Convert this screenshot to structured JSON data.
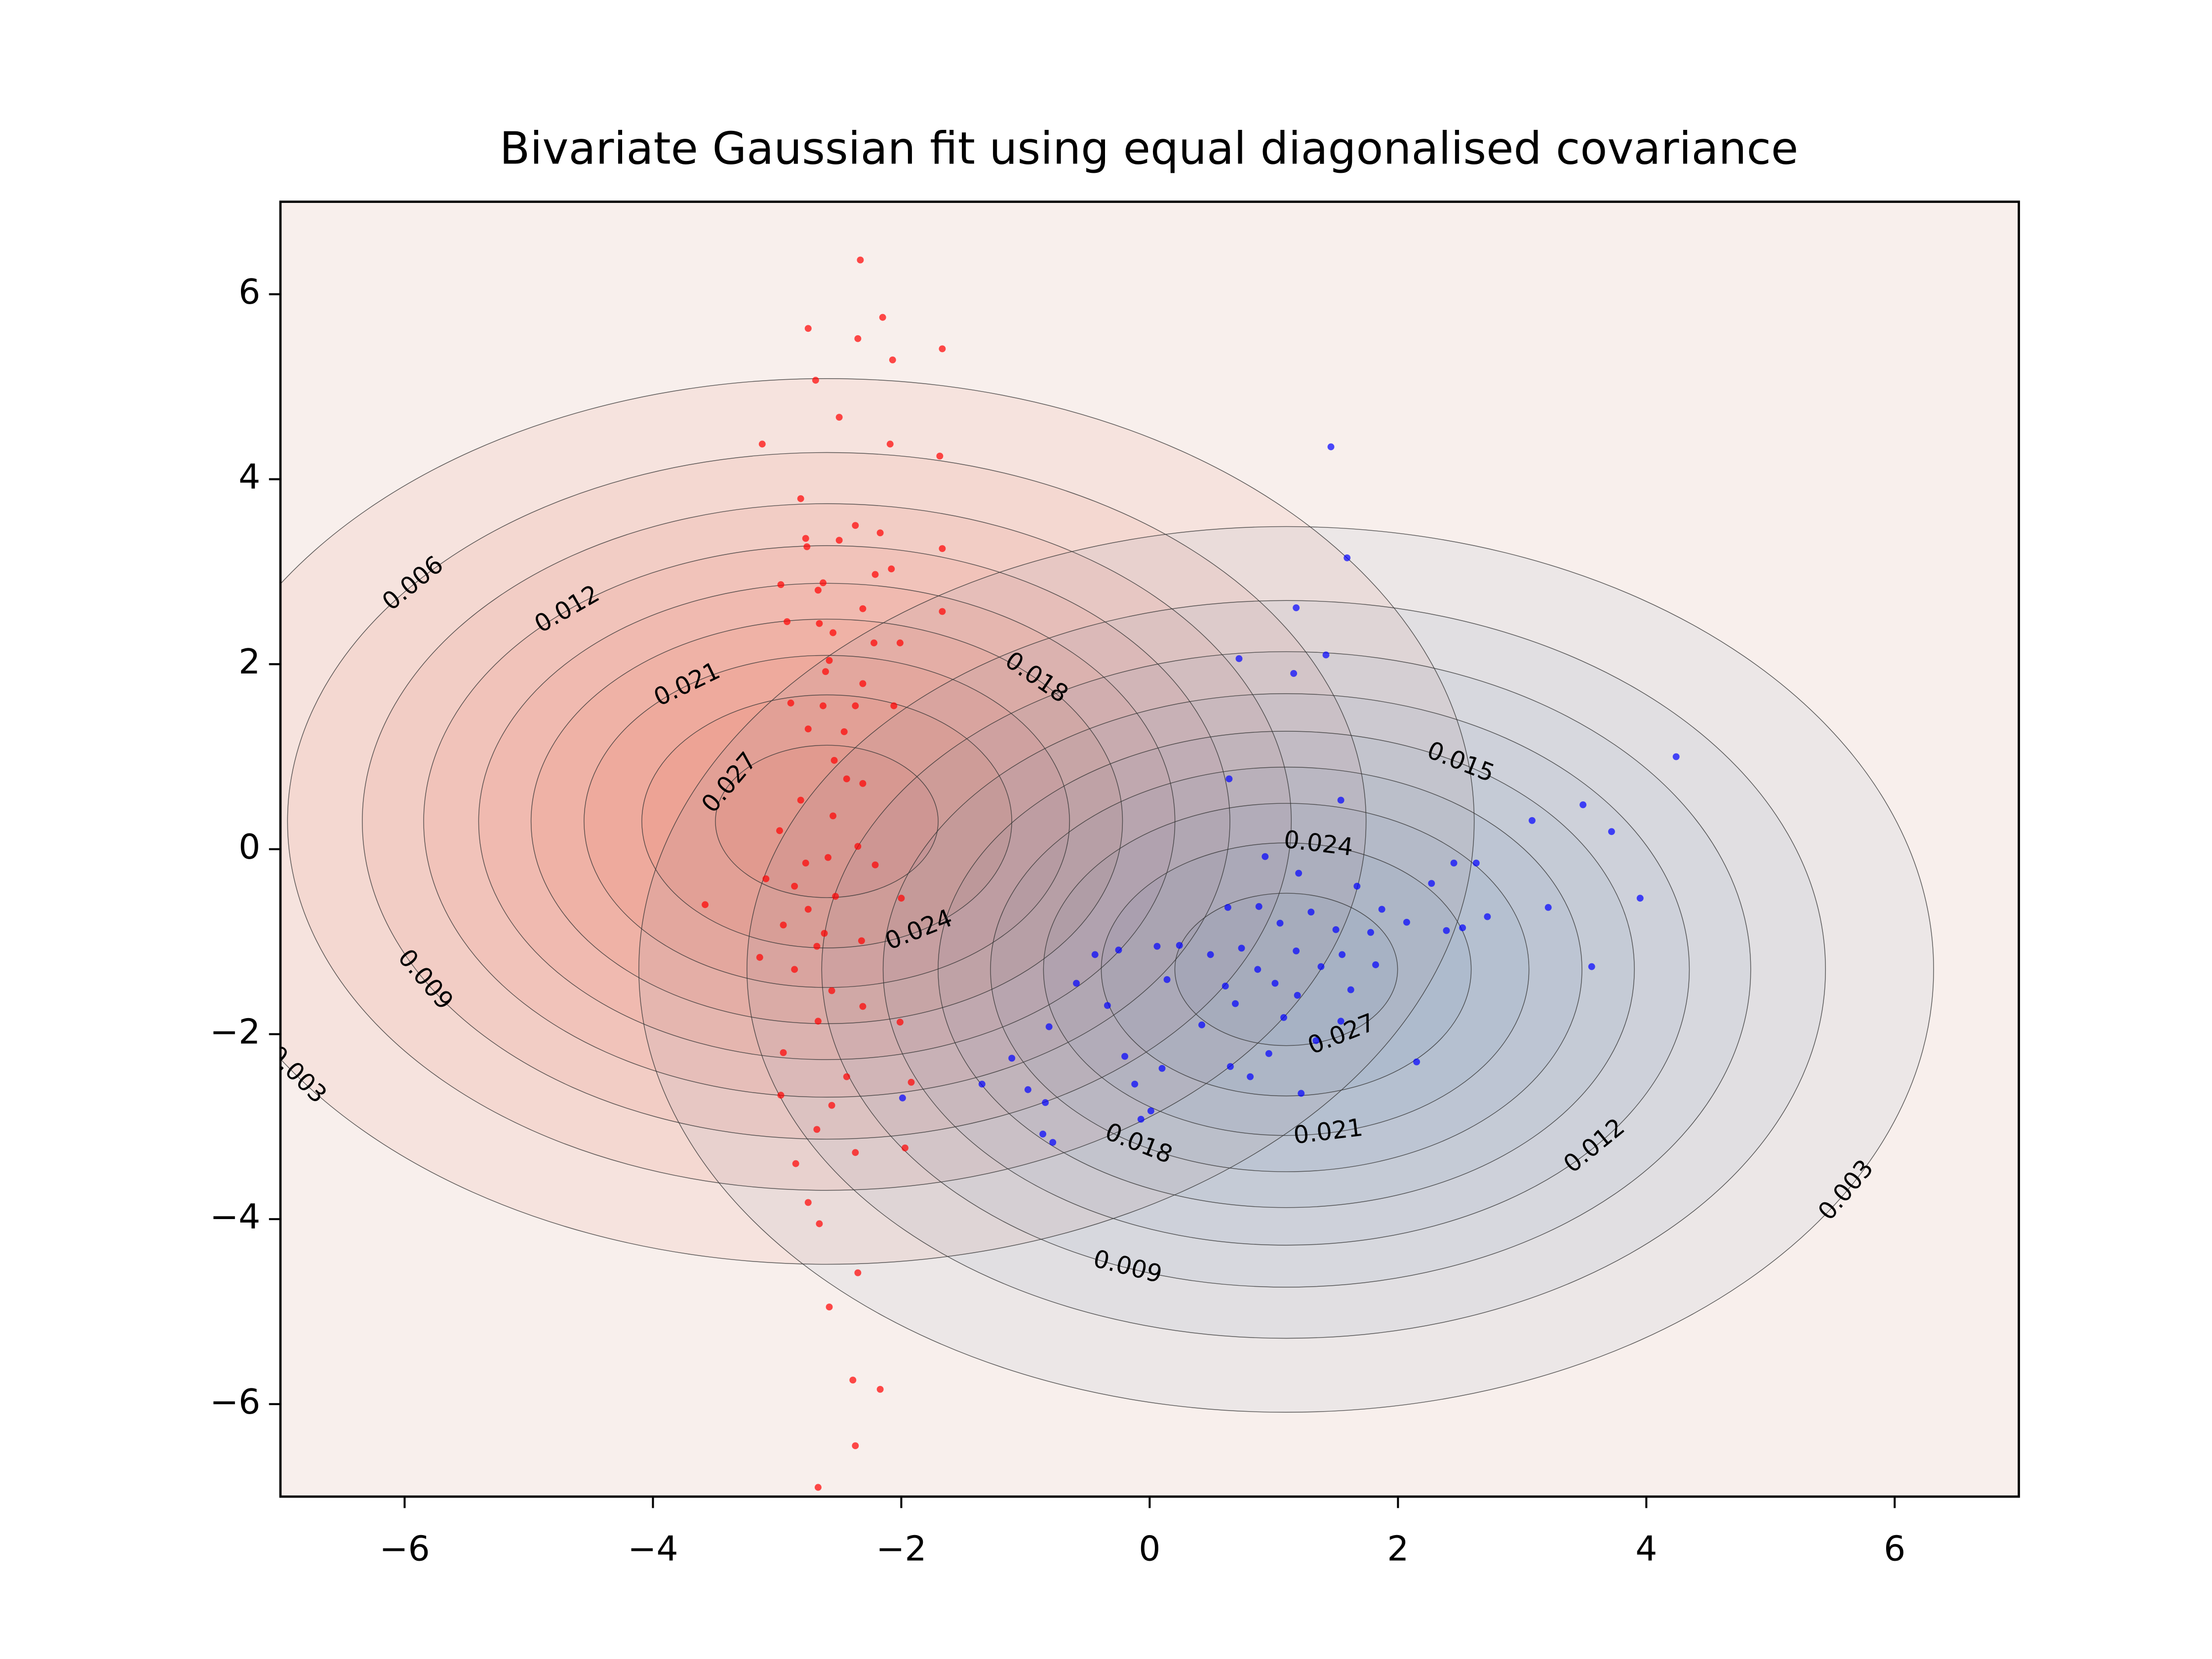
{
  "chart_data": {
    "type": "contour-scatter",
    "title": "Bivariate Gaussian fit using equal diagonalised covariance",
    "xlim": [
      -7,
      7
    ],
    "ylim": [
      -7,
      7
    ],
    "xticks": [
      {
        "value": -6,
        "label": "−6"
      },
      {
        "value": -4,
        "label": "−4"
      },
      {
        "value": -2,
        "label": "−2"
      },
      0,
      2,
      4,
      6
    ],
    "yticks": [
      {
        "value": -6,
        "label": "−6"
      },
      {
        "value": -4,
        "label": "−4"
      },
      {
        "value": -2,
        "label": "−2"
      },
      0,
      2,
      4,
      6
    ],
    "levels": [
      0.003,
      0.006,
      0.009,
      0.012,
      0.015,
      0.018,
      0.021,
      0.024,
      0.027
    ],
    "contour_sets": [
      {
        "color": "#e0503c",
        "mean": [
          -2.6,
          0.3
        ],
        "sigma": [
          2.45,
          2.25
        ]
      },
      {
        "color": "#5a80aa",
        "mean": [
          1.1,
          -1.3
        ],
        "sigma": [
          2.45,
          2.25
        ]
      }
    ],
    "series": [
      {
        "color": "#ff0000",
        "x": [
          -2.33,
          -2.15,
          -2.75,
          -2.35,
          -1.67,
          -2.07,
          -2.69,
          -2.5,
          -3.12,
          -2.09,
          -1.69,
          -2.81,
          -2.37,
          -2.77,
          -2.17,
          -2.5,
          -1.67,
          -2.76,
          -2.08,
          -2.21,
          -2.97,
          -2.63,
          -2.67,
          -2.31,
          -1.67,
          -2.92,
          -2.66,
          -2.55,
          -2.22,
          -2.01,
          -2.58,
          -2.61,
          -2.31,
          -2.89,
          -2.63,
          -2.37,
          -2.06,
          -2.75,
          -2.46,
          -2.54,
          -2.44,
          -2.31,
          -2.81,
          -2.55,
          -2.98,
          -2.35,
          -2.59,
          -2.77,
          -2.21,
          -3.09,
          -2.86,
          -2.53,
          -2.0,
          -3.58,
          -2.75,
          -2.95,
          -2.62,
          -2.32,
          -2.68,
          -3.14,
          -2.86,
          -2.56,
          -2.31,
          -2.67,
          -2.01,
          -2.95,
          -2.44,
          -1.92,
          -2.97,
          -2.56,
          -2.68,
          -2.37,
          -1.97,
          -2.85,
          -2.75,
          -2.66,
          -2.35,
          -2.58,
          -2.39,
          -2.17,
          -2.37,
          -2.67
        ],
        "y": [
          6.37,
          5.75,
          5.63,
          5.52,
          5.41,
          5.29,
          5.07,
          4.67,
          4.38,
          4.38,
          4.25,
          3.79,
          3.5,
          3.36,
          3.42,
          3.34,
          3.25,
          3.27,
          3.03,
          2.97,
          2.86,
          2.88,
          2.8,
          2.6,
          2.57,
          2.46,
          2.44,
          2.34,
          2.23,
          2.23,
          2.04,
          1.92,
          1.79,
          1.58,
          1.55,
          1.55,
          1.55,
          1.3,
          1.27,
          0.96,
          0.76,
          0.71,
          0.53,
          0.36,
          0.2,
          0.03,
          -0.09,
          -0.15,
          -0.17,
          -0.32,
          -0.4,
          -0.51,
          -0.53,
          -0.6,
          -0.65,
          -0.82,
          -0.91,
          -0.99,
          -1.05,
          -1.17,
          -1.3,
          -1.53,
          -1.7,
          -1.86,
          -1.87,
          -2.2,
          -2.46,
          -2.52,
          -2.66,
          -2.77,
          -3.03,
          -3.28,
          -3.23,
          -3.4,
          -3.82,
          -4.05,
          -4.58,
          -4.95,
          -5.74,
          -5.84,
          -6.45,
          -6.9
        ]
      },
      {
        "color": "#0000ff",
        "x": [
          1.46,
          1.59,
          1.18,
          0.72,
          1.42,
          1.16,
          4.24,
          0.64,
          1.54,
          3.08,
          3.49,
          3.72,
          2.45,
          2.63,
          3.95,
          2.27,
          3.21,
          0.93,
          1.2,
          1.67,
          1.87,
          2.72,
          0.63,
          0.88,
          1.3,
          2.07,
          2.39,
          2.52,
          1.05,
          1.5,
          1.78,
          0.24,
          0.49,
          0.74,
          1.18,
          1.55,
          -0.25,
          0.06,
          0.87,
          1.38,
          1.82,
          3.56,
          -0.44,
          0.14,
          0.61,
          1.01,
          1.19,
          1.62,
          -0.59,
          -0.34,
          0.69,
          1.08,
          1.54,
          2.15,
          0.42,
          -0.81,
          -1.11,
          -0.2,
          0.1,
          0.65,
          0.96,
          1.34,
          -1.35,
          -0.98,
          -0.12,
          0.81,
          1.22,
          -0.84,
          0.01,
          -1.99,
          -0.07,
          -0.86,
          -0.78
        ],
        "y": [
          4.35,
          3.15,
          2.61,
          2.06,
          2.1,
          1.9,
          1.0,
          0.76,
          0.53,
          0.31,
          0.48,
          0.19,
          -0.15,
          -0.15,
          -0.53,
          -0.37,
          -0.63,
          -0.08,
          -0.26,
          -0.4,
          -0.65,
          -0.73,
          -0.63,
          -0.62,
          -0.68,
          -0.79,
          -0.88,
          -0.85,
          -0.8,
          -0.87,
          -0.9,
          -1.04,
          -1.14,
          -1.07,
          -1.1,
          -1.14,
          -1.09,
          -1.05,
          -1.3,
          -1.27,
          -1.25,
          -1.27,
          -1.14,
          -1.41,
          -1.48,
          -1.45,
          -1.58,
          -1.52,
          -1.45,
          -1.69,
          -1.67,
          -1.82,
          -1.86,
          -2.3,
          -1.9,
          -1.92,
          -2.26,
          -2.24,
          -2.37,
          -2.35,
          -2.21,
          -2.07,
          -2.54,
          -2.6,
          -2.54,
          -2.46,
          -2.64,
          -2.74,
          -2.83,
          -2.69,
          -2.92,
          -3.08,
          -3.17
        ]
      }
    ]
  }
}
